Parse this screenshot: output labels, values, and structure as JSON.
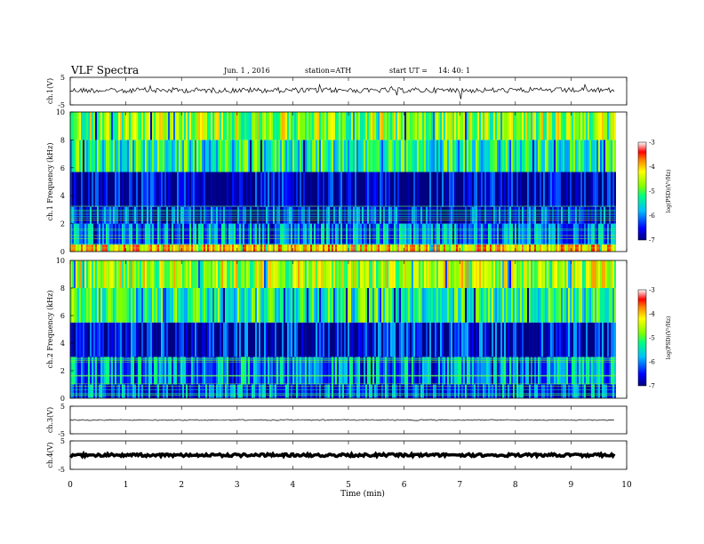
{
  "header": {
    "title": "VLF Spectra",
    "date": "Jun. 1 , 2016",
    "station": "station=ATH",
    "start": "start UT =",
    "start_time": "14: 40: 1"
  },
  "chart_data": [
    {
      "type": "line",
      "name": "ch1-waveform",
      "ylabel": "ch.1(V)",
      "ylim": [
        -5,
        5
      ],
      "y_ticks": [
        "5",
        "-5"
      ],
      "xlim": [
        0,
        10
      ],
      "trace_level": 0.3,
      "trace_end": 9.8
    },
    {
      "type": "heatmap",
      "name": "ch1-spectrogram",
      "ylabel": "ch.1 Frequency (kHz)",
      "ylim": [
        0,
        10
      ],
      "y_ticks": [
        "0",
        "2",
        "4",
        "6",
        "8",
        "10"
      ],
      "xlim": [
        0,
        10
      ],
      "data_end": 9.8,
      "bands": [
        {
          "from": 0,
          "to": 0.5,
          "level": -4.0
        },
        {
          "from": 0.5,
          "to": 2.0,
          "level": -6.0
        },
        {
          "from": 2.0,
          "to": 3.2,
          "level": -6.5
        },
        {
          "from": 3.2,
          "to": 5.7,
          "level": -6.8
        },
        {
          "from": 5.7,
          "to": 8.0,
          "level": -5.3
        },
        {
          "from": 8.0,
          "to": 10.0,
          "level": -4.7
        }
      ],
      "colorbar": {
        "label": "log(PSD)(V²/Hz)",
        "ticks": [
          "-3",
          "-4",
          "-5",
          "-6",
          "-7"
        ],
        "range": [
          -7,
          -3
        ]
      }
    },
    {
      "type": "heatmap",
      "name": "ch2-spectrogram",
      "ylabel": "ch.2 Frequency (kHz)",
      "ylim": [
        0,
        10
      ],
      "y_ticks": [
        "0",
        "2",
        "4",
        "6",
        "8",
        "10"
      ],
      "xlim": [
        0,
        10
      ],
      "data_end": 9.8,
      "bands": [
        {
          "from": 0,
          "to": 1.0,
          "level": -6.2
        },
        {
          "from": 1.0,
          "to": 3.0,
          "level": -5.9
        },
        {
          "from": 3.0,
          "to": 5.5,
          "level": -6.6
        },
        {
          "from": 5.5,
          "to": 8.0,
          "level": -5.2
        },
        {
          "from": 8.0,
          "to": 10.0,
          "level": -4.6
        }
      ],
      "colorbar": {
        "label": "log(PSD)(V²/Hz)",
        "ticks": [
          "-3",
          "-4",
          "-5",
          "-6",
          "-7"
        ],
        "range": [
          -7,
          -3
        ]
      }
    },
    {
      "type": "line",
      "name": "ch3-waveform",
      "ylabel": "ch.3(V)",
      "ylim": [
        -5,
        5
      ],
      "y_ticks": [
        "5",
        "-5"
      ],
      "xlim": [
        0,
        10
      ],
      "trace_level": 0,
      "trace_end": 9.8
    },
    {
      "type": "line",
      "name": "ch4-waveform",
      "ylabel": "ch.4(V)",
      "ylim": [
        -5,
        5
      ],
      "y_ticks": [
        "5",
        "-5"
      ],
      "xlim": [
        0,
        10
      ],
      "trace_level": 0,
      "trace_end": 9.8
    }
  ],
  "x_axis": {
    "label": "Time (min)",
    "ticks": [
      "0",
      "1",
      "2",
      "3",
      "4",
      "5",
      "6",
      "7",
      "8",
      "9",
      "10"
    ]
  },
  "colors": {
    "colormap": [
      "#000080",
      "#0000ff",
      "#00bfff",
      "#00ff80",
      "#80ff00",
      "#ffff00",
      "#ff8000",
      "#ff0000",
      "#ffffff"
    ]
  }
}
